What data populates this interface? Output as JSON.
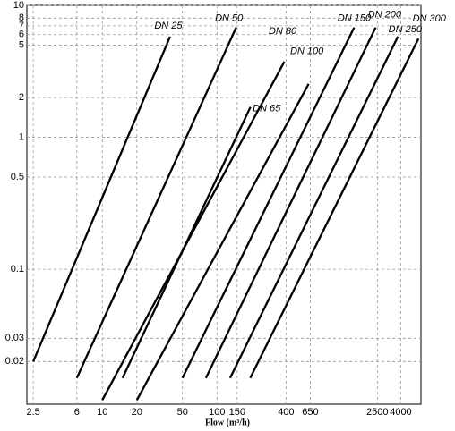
{
  "chart_data": {
    "type": "line",
    "x_label": "Flow (m³/h)",
    "xscale": "log",
    "yscale": "log",
    "grid": true,
    "color": "#000000",
    "xlim": [
      2.2,
      6000
    ],
    "ylim": [
      0.0095,
      10
    ],
    "xticks": [
      2.5,
      6,
      10,
      20,
      50,
      100,
      150,
      400,
      650,
      2500,
      4000
    ],
    "yticks": [
      0.02,
      0.03,
      0.1,
      0.5,
      1,
      2,
      5,
      6,
      7,
      8,
      10
    ],
    "series": [
      {
        "name": "DN 25",
        "x": [
          2.5,
          39
        ],
        "values": [
          0.02,
          5.8
        ]
      },
      {
        "name": "DN 50",
        "x": [
          6,
          147
        ],
        "values": [
          0.015,
          6.8
        ]
      },
      {
        "name": "DN 65",
        "x": [
          15,
          196
        ],
        "values": [
          0.015,
          1.7
        ]
      },
      {
        "name": "DN 80",
        "x": [
          10,
          387
        ],
        "values": [
          0.0102,
          3.75
        ]
      },
      {
        "name": "DN 100",
        "x": [
          20,
          630
        ],
        "values": [
          0.0102,
          2.54
        ]
      },
      {
        "name": "DN 150",
        "x": [
          50,
          1570
        ],
        "values": [
          0.015,
          6.8
        ]
      },
      {
        "name": "DN 200",
        "x": [
          80,
          2415
        ],
        "values": [
          0.015,
          6.8
        ]
      },
      {
        "name": "DN 250",
        "x": [
          130,
          3780
        ],
        "values": [
          0.015,
          5.8
        ]
      },
      {
        "name": "DN 300",
        "x": [
          195,
          5710
        ],
        "values": [
          0.015,
          5.6
        ]
      }
    ]
  }
}
